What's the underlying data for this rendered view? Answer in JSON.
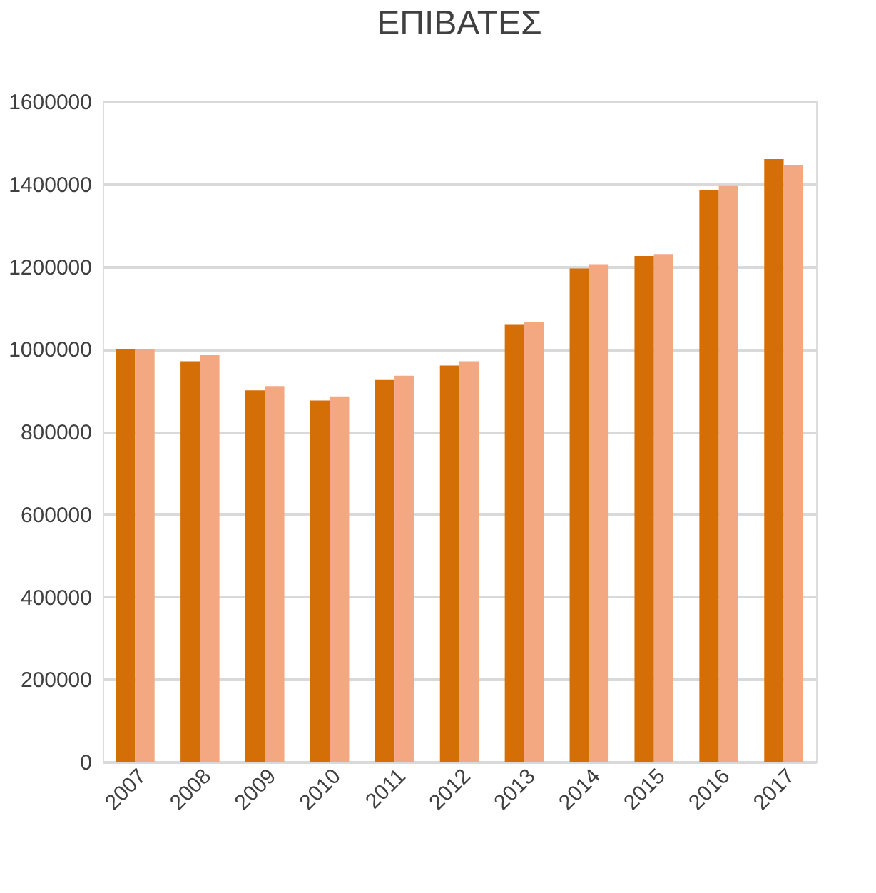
{
  "chart_data": {
    "type": "bar",
    "title": "ΕΠΙΒΑΤΕΣ",
    "categories": [
      "2007",
      "2008",
      "2009",
      "2010",
      "2011",
      "2012",
      "2013",
      "2014",
      "2015",
      "2016",
      "2017"
    ],
    "series": [
      {
        "color": "#d46f07",
        "values": [
          1000000,
          970000,
          900000,
          875000,
          925000,
          960000,
          1060000,
          1195000,
          1225000,
          1385000,
          1460000
        ]
      },
      {
        "color": "#f4a882",
        "values": [
          1000000,
          985000,
          910000,
          885000,
          935000,
          970000,
          1065000,
          1205000,
          1230000,
          1395000,
          1445000
        ]
      }
    ],
    "ylim": [
      0,
      1600000
    ],
    "yticks": [
      0,
      200000,
      400000,
      600000,
      800000,
      1000000,
      1200000,
      1400000,
      1600000
    ],
    "grid": "y",
    "legend": false
  }
}
